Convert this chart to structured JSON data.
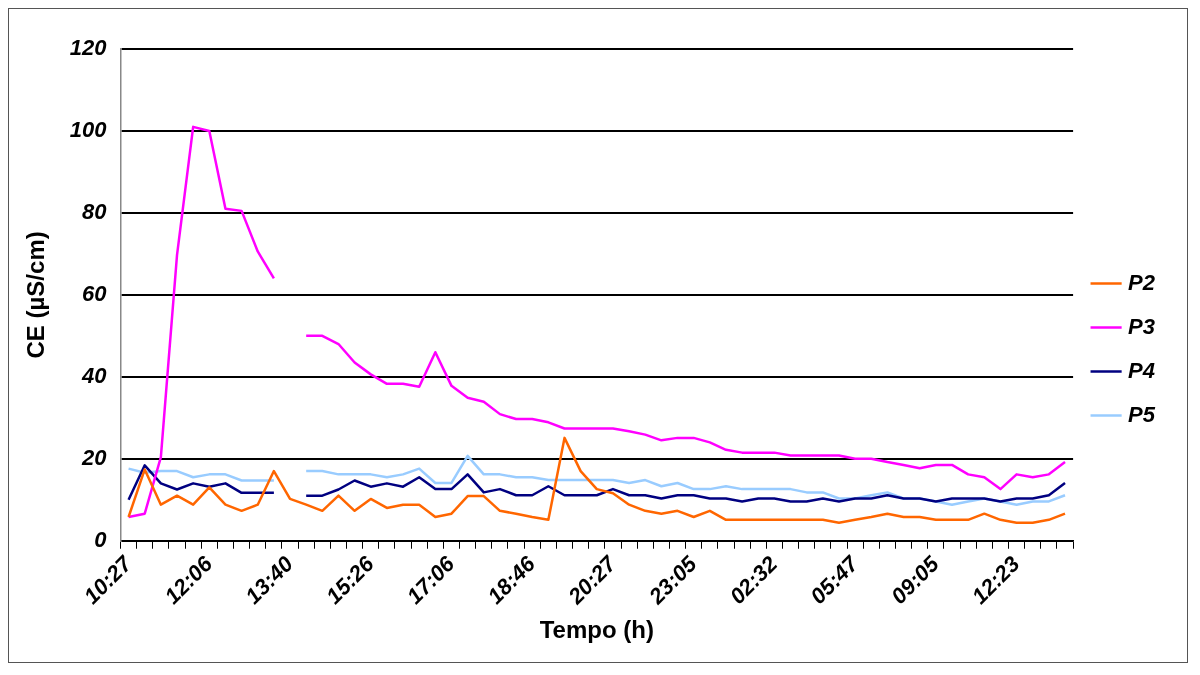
{
  "chart_data": {
    "type": "line",
    "xlabel": "Tempo (h)",
    "ylabel": "CE (µS/cm)",
    "categories": [
      "10:27",
      null,
      null,
      null,
      null,
      "12:06",
      null,
      null,
      null,
      null,
      "13:40",
      null,
      null,
      null,
      null,
      "15:26",
      null,
      null,
      null,
      null,
      "17:06",
      null,
      null,
      null,
      null,
      "18:46",
      null,
      null,
      null,
      null,
      "20:27",
      null,
      null,
      null,
      null,
      "23:05",
      null,
      null,
      null,
      null,
      "02:32",
      null,
      null,
      null,
      null,
      "05:47",
      null,
      null,
      null,
      null,
      "09:05",
      null,
      null,
      null,
      null,
      "12:23",
      null,
      null,
      null
    ],
    "ylim": [
      0,
      120
    ],
    "yticks": [
      0,
      20,
      40,
      60,
      80,
      100,
      120
    ],
    "grid": "y",
    "legend": "right",
    "series": [
      {
        "name": "P2",
        "color": "#ff6600",
        "values": [
          5.8,
          17.4,
          8.8,
          11,
          8.8,
          13,
          8.8,
          7.3,
          8.8,
          17,
          10.2,
          8.8,
          7.3,
          11,
          7.3,
          10.2,
          8,
          8.8,
          8.8,
          5.8,
          6.6,
          10.9,
          10.9,
          7.3,
          6.6,
          5.8,
          5.1,
          25.1,
          17,
          12.6,
          11.6,
          8.8,
          7.3,
          6.6,
          7.3,
          5.8,
          7.3,
          5.1,
          5.1,
          5.1,
          5.1,
          5.1,
          5.1,
          5.1,
          4.4,
          5.1,
          5.8,
          6.6,
          5.8,
          5.8,
          5.1,
          5.1,
          5.1,
          6.6,
          5.1,
          4.4,
          4.4,
          5.1,
          6.6
        ]
      },
      {
        "name": "P3",
        "color": "#ff00ff",
        "values": [
          5.8,
          6.6,
          20.4,
          69.7,
          101,
          100,
          81,
          80.5,
          70.6,
          64,
          null,
          50,
          50,
          48,
          43.5,
          40.6,
          38.3,
          38.3,
          37.6,
          46,
          37.8,
          34.9,
          33.9,
          30.9,
          29.7,
          29.7,
          28.9,
          27.4,
          27.4,
          27.4,
          27.4,
          26.7,
          25.9,
          24.5,
          25.1,
          25.1,
          24,
          22.2,
          21.5,
          21.5,
          21.5,
          20.8,
          20.8,
          20.8,
          20.8,
          20,
          20,
          19.2,
          18.5,
          17.7,
          18.5,
          18.5,
          16.2,
          15.5,
          12.6,
          16.2,
          15.5,
          16.2,
          19.2
        ]
      },
      {
        "name": "P4",
        "color": "#000080",
        "values": [
          10,
          18.4,
          14,
          12.5,
          14,
          13.2,
          14,
          11.7,
          11.7,
          11.7,
          null,
          11,
          11,
          12.5,
          14.7,
          13.2,
          14,
          13.2,
          15.5,
          12.6,
          12.6,
          16.2,
          11.8,
          12.6,
          11.1,
          11.1,
          13.3,
          11.1,
          11.1,
          11.1,
          12.6,
          11.1,
          11.1,
          10.3,
          11.1,
          11.1,
          10.3,
          10.3,
          9.6,
          10.3,
          10.3,
          9.6,
          9.6,
          10.3,
          9.6,
          10.3,
          10.3,
          11.1,
          10.3,
          10.3,
          9.6,
          10.3,
          10.3,
          10.3,
          9.6,
          10.3,
          10.3,
          11.1,
          14.1
        ]
      },
      {
        "name": "P5",
        "color": "#99ccff",
        "values": [
          17.6,
          16.6,
          17,
          17,
          15.5,
          16.2,
          16.2,
          14.7,
          14.7,
          14.7,
          null,
          17,
          17,
          16.2,
          16.2,
          16.2,
          15.5,
          16.2,
          17.6,
          14.1,
          14.1,
          20.7,
          16.2,
          16.2,
          15.5,
          15.5,
          14.8,
          14.8,
          14.8,
          14.8,
          14.8,
          14.1,
          14.8,
          13.3,
          14.1,
          12.6,
          12.6,
          13.3,
          12.6,
          12.6,
          12.6,
          12.6,
          11.8,
          11.8,
          10.3,
          10.3,
          11.1,
          11.8,
          10.3,
          10.3,
          9.6,
          8.8,
          9.6,
          10.3,
          9.6,
          8.8,
          9.6,
          9.6,
          11.1
        ]
      }
    ]
  }
}
